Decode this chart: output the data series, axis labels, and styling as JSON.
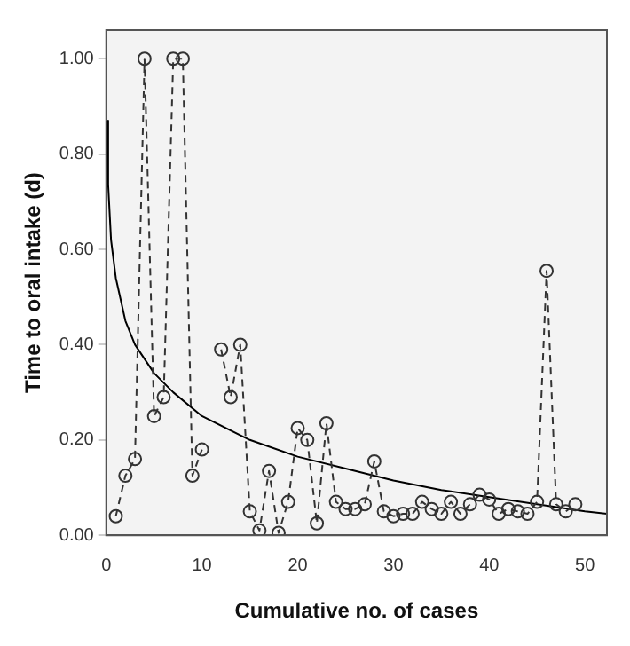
{
  "chart_data": {
    "type": "line",
    "xlabel": "Cumulative no. of cases",
    "ylabel": "Time to oral intake (d)",
    "xlim": [
      0,
      52.3
    ],
    "xticks": [
      0,
      10,
      20,
      30,
      40,
      50
    ],
    "ylim": [
      0,
      1.06
    ],
    "yticks": [
      {
        "value": 0,
        "label": "0.00"
      },
      {
        "value": 0.2,
        "label": "0.20"
      },
      {
        "value": 0.4,
        "label": "0.40"
      },
      {
        "value": 0.6,
        "label": "0.60"
      },
      {
        "value": 0.8,
        "label": "0.80"
      },
      {
        "value": 1,
        "label": "1.00"
      }
    ],
    "grid": false,
    "legend": false,
    "series": [
      {
        "color": "#333333",
        "marker": "circle",
        "line_style": "dashed",
        "x": [
          1,
          2,
          3,
          4,
          5,
          6,
          7,
          8,
          9,
          10,
          11,
          12,
          13,
          14,
          15,
          16,
          17,
          18,
          19,
          20,
          21,
          22,
          23,
          24,
          25,
          26,
          27,
          28,
          29,
          30,
          31,
          32,
          33,
          34,
          35,
          36,
          37,
          38,
          39,
          40,
          41,
          42,
          43,
          44,
          45,
          46,
          47,
          48,
          49
        ],
        "values": [
          0.04,
          0.125,
          0.16,
          1.0,
          0.25,
          0.29,
          1.0,
          1.0,
          0.125,
          0.18,
          null,
          0.39,
          0.29,
          0.4,
          0.05,
          0.01,
          0.135,
          0.005,
          0.07,
          0.225,
          0.2,
          0.025,
          0.235,
          0.07,
          0.055,
          0.055,
          0.065,
          0.155,
          0.05,
          0.04,
          0.045,
          0.045,
          0.07,
          0.055,
          0.045,
          0.07,
          0.045,
          0.065,
          0.085,
          0.075,
          0.045,
          0.055,
          0.05,
          0.045,
          0.07,
          0.555,
          0.065,
          0.05,
          0.065
        ]
      },
      {
        "type": "line",
        "color": "#000000",
        "marker": "none",
        "line_style": "solid",
        "x": [
          0.07,
          0.2,
          0.5,
          1,
          2,
          3,
          5,
          7,
          10,
          15,
          20,
          25,
          30,
          35,
          40,
          45,
          50,
          52.3
        ],
        "values": [
          0.87,
          0.736,
          0.62,
          0.54,
          0.45,
          0.4,
          0.34,
          0.3,
          0.25,
          0.2,
          0.165,
          0.14,
          0.115,
          0.095,
          0.08,
          0.065,
          0.05,
          0.045
        ]
      }
    ]
  }
}
